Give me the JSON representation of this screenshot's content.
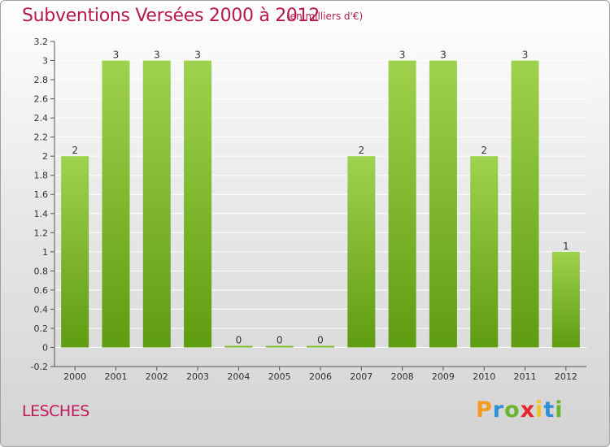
{
  "chart_data": {
    "type": "bar",
    "title": "Subventions Versées 2000 à 2012",
    "subtitle": "(en milliers d'€)",
    "categories": [
      "2000",
      "2001",
      "2002",
      "2003",
      "2004",
      "2005",
      "2006",
      "2007",
      "2008",
      "2009",
      "2010",
      "2011",
      "2012"
    ],
    "values": [
      2,
      3,
      3,
      3,
      0,
      0,
      0,
      2,
      3,
      3,
      2,
      3,
      1
    ],
    "value_labels": [
      "2",
      "3",
      "3",
      "3",
      "0",
      "0",
      "0",
      "2",
      "3",
      "3",
      "2",
      "3",
      "1"
    ],
    "ylim": [
      -0.2,
      3.2
    ],
    "yticks": [
      {
        "value": 3.2,
        "label": "3.2"
      },
      {
        "value": 3.0,
        "label": "3"
      },
      {
        "value": 2.8,
        "label": "2.8"
      },
      {
        "value": 2.6,
        "label": "2.6"
      },
      {
        "value": 2.4,
        "label": "2.4"
      },
      {
        "value": 2.2,
        "label": "2.2"
      },
      {
        "value": 2.0,
        "label": "2"
      },
      {
        "value": 1.8,
        "label": "1.8"
      },
      {
        "value": 1.6,
        "label": "1.6"
      },
      {
        "value": 1.4,
        "label": "1.4"
      },
      {
        "value": 1.2,
        "label": "1.2"
      },
      {
        "value": 1.0,
        "label": "1"
      },
      {
        "value": 0.8,
        "label": "0.8"
      },
      {
        "value": 0.6,
        "label": "0.6"
      },
      {
        "value": 0.4,
        "label": "0.4"
      },
      {
        "value": 0.2,
        "label": "0.2"
      },
      {
        "value": 0.0,
        "label": "0"
      },
      {
        "value": -0.2,
        "label": "-0.2"
      }
    ],
    "grid": true,
    "bar_color_top": "#9fd24e",
    "bar_color_bottom": "#5e9c10"
  },
  "commune": "LESCHES",
  "logo": {
    "letters": [
      "P",
      "r",
      "o",
      "x",
      "i",
      "t",
      "i"
    ],
    "colors": [
      "#f39a1f",
      "#2f8fd8",
      "#6ab52e",
      "#e3262b",
      "#f3c31f",
      "#2f8fd8",
      "#6ab52e"
    ]
  },
  "colors": {
    "title": "#b5184d",
    "grid": "#ffffff",
    "axis": "#555555"
  }
}
